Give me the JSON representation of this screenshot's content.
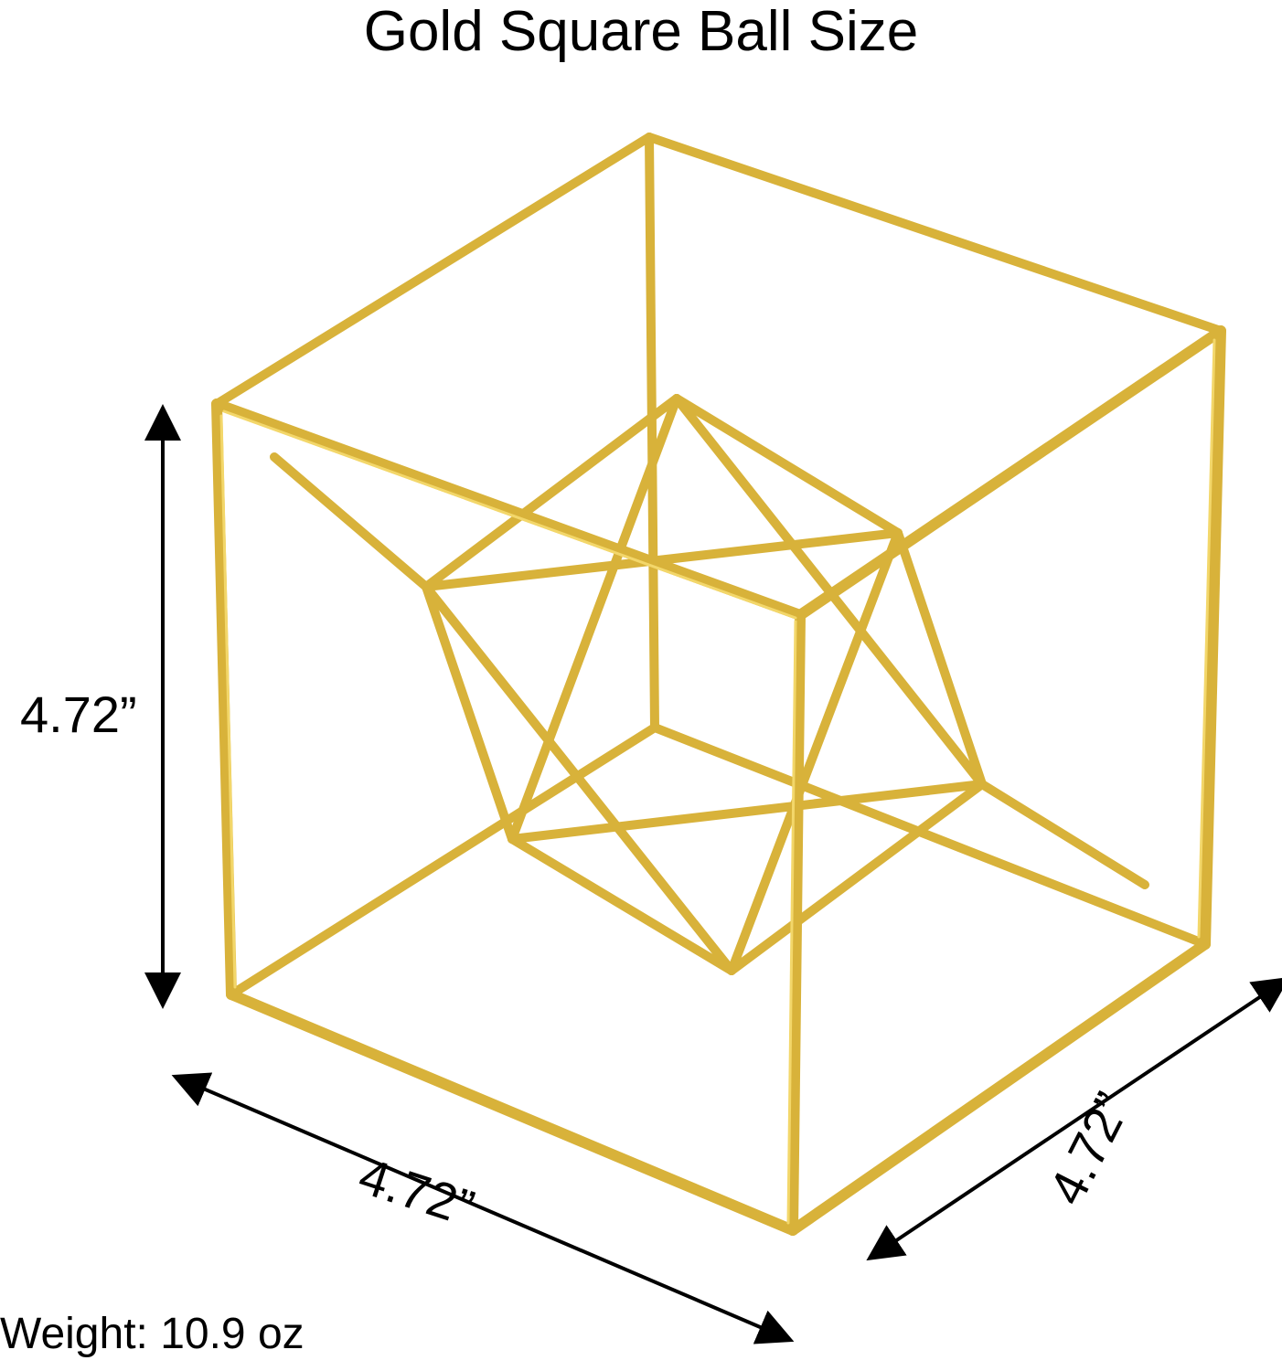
{
  "title": "Gold Square Ball Size",
  "dimensions": {
    "height": "4.72”",
    "width": "4.72”",
    "depth": "4.72”"
  },
  "weight": "Weight: 10.9 oz",
  "colors": {
    "gold": "#d8b23a",
    "gold_highlight": "#f3d76a",
    "text": "#000000",
    "background": "#ffffff"
  }
}
